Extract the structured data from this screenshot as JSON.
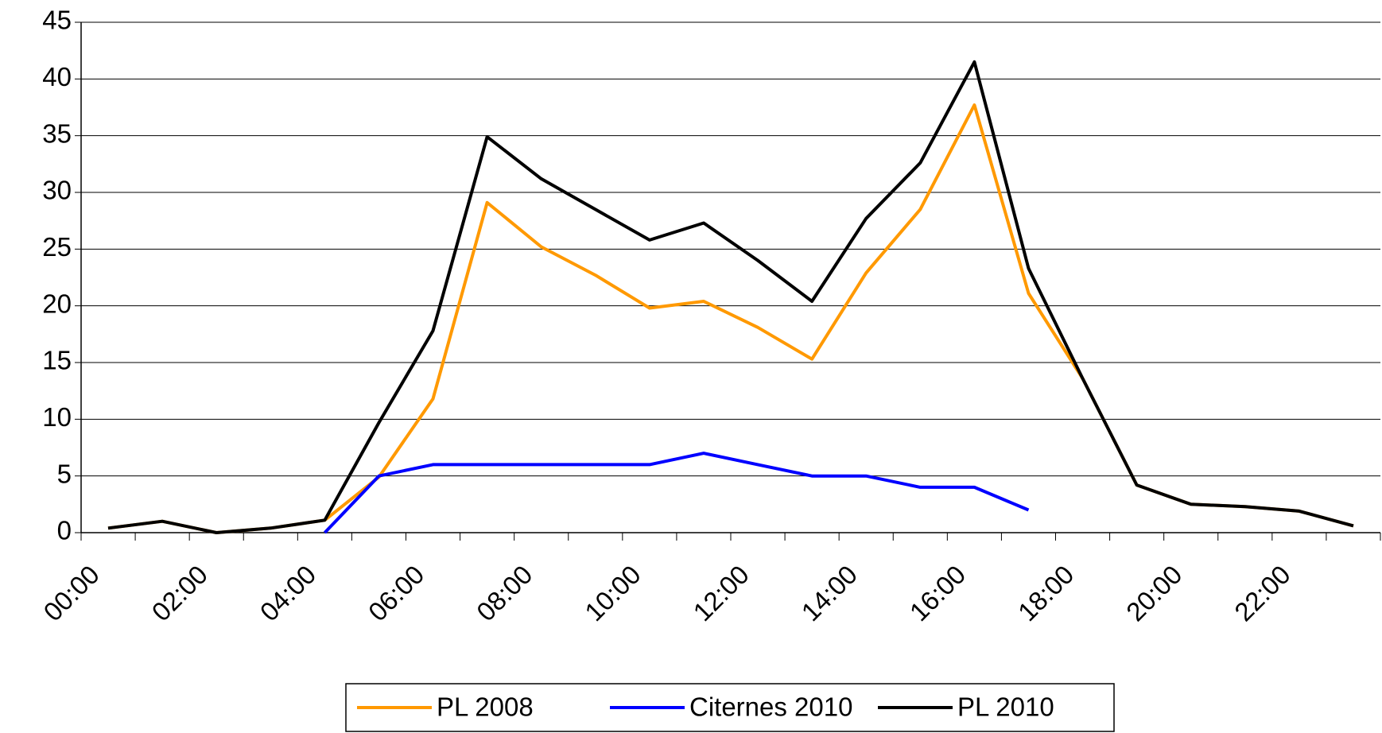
{
  "chart_data": {
    "type": "line",
    "categories": [
      "00:00",
      null,
      "02:00",
      null,
      "04:00",
      null,
      "06:00",
      null,
      "08:00",
      null,
      "10:00",
      null,
      "12:00",
      null,
      "14:00",
      null,
      "16:00",
      null,
      "18:00",
      null,
      "20:00",
      null,
      "22:00",
      null
    ],
    "series": [
      {
        "name": "PL 2008",
        "color": "#ff9900",
        "values": [
          0.4,
          1,
          0,
          0.4,
          1.1,
          4.9,
          11.8,
          29.1,
          25.2,
          22.7,
          19.8,
          20.4,
          18.1,
          15.3,
          22.9,
          28.5,
          37.7,
          21.1,
          13.6,
          4.2,
          2.5,
          2.3,
          1.9,
          0.6
        ]
      },
      {
        "name": "Citernes 2010",
        "color": "#0000ff",
        "values": [
          null,
          null,
          null,
          null,
          0,
          5,
          6,
          6,
          6,
          6,
          6,
          7,
          6,
          5,
          5,
          4,
          4,
          2,
          null,
          null,
          null,
          null,
          null,
          null
        ]
      },
      {
        "name": "PL 2010",
        "color": "#000000",
        "values": [
          0.4,
          1,
          0,
          0.4,
          1.1,
          9.7,
          17.8,
          34.9,
          31.2,
          28.5,
          25.8,
          27.3,
          24,
          20.4,
          27.7,
          32.6,
          41.5,
          23.3,
          13.6,
          4.2,
          2.5,
          2.3,
          1.9,
          0.6
        ]
      }
    ],
    "ylim": [
      0,
      45
    ],
    "yticks": [
      0,
      5,
      10,
      15,
      20,
      25,
      30,
      35,
      40,
      45
    ],
    "grid": true,
    "legend": "bottom"
  }
}
